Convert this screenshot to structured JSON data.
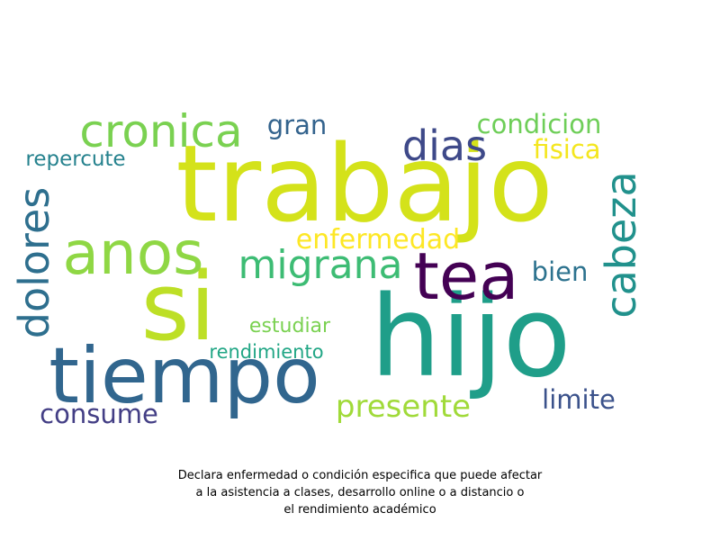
{
  "wordcloud": {
    "words": [
      {
        "text": "trabajo",
        "color": "#d4e21a",
        "vertical": false
      },
      {
        "text": "hijo",
        "color": "#1f9e89",
        "vertical": false
      },
      {
        "text": "si",
        "color": "#bddf26",
        "vertical": false
      },
      {
        "text": "tiempo",
        "color": "#31668e",
        "vertical": false
      },
      {
        "text": "tea",
        "color": "#440154",
        "vertical": false
      },
      {
        "text": "anos",
        "color": "#8fd744",
        "vertical": false
      },
      {
        "text": "cronica",
        "color": "#7ad151",
        "vertical": false
      },
      {
        "text": "migrana",
        "color": "#3dbc74",
        "vertical": false
      },
      {
        "text": "dolores",
        "color": "#2e6f8e",
        "vertical": true
      },
      {
        "text": "cabeza",
        "color": "#21918c",
        "vertical": true
      },
      {
        "text": "dias",
        "color": "#3e4989",
        "vertical": false
      },
      {
        "text": "enfermedad",
        "color": "#fde725",
        "vertical": false
      },
      {
        "text": "presente",
        "color": "#a0da39",
        "vertical": false
      },
      {
        "text": "consume",
        "color": "#433e85",
        "vertical": false
      },
      {
        "text": "limite",
        "color": "#3b528b",
        "vertical": false
      },
      {
        "text": "bien",
        "color": "#2c728e",
        "vertical": false
      },
      {
        "text": "condicion",
        "color": "#6ece58",
        "vertical": false
      },
      {
        "text": "fisica",
        "color": "#f4e61e",
        "vertical": false
      },
      {
        "text": "gran",
        "color": "#33638d",
        "vertical": false
      },
      {
        "text": "repercute",
        "color": "#26828e",
        "vertical": false
      },
      {
        "text": "estudiar",
        "color": "#7ad151",
        "vertical": false
      },
      {
        "text": "rendimiento",
        "color": "#21a685",
        "vertical": false
      }
    ]
  },
  "caption": {
    "line1": "Declara enfermedad o condición especifica que puede afectar",
    "line2": "a la asistencia a clases, desarrollo online o a distancio o",
    "line3": "el rendimiento académico"
  }
}
